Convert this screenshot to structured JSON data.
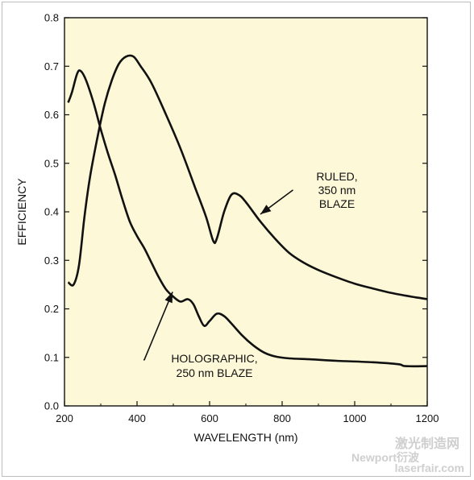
{
  "chart_data": {
    "type": "line",
    "xlabel": "WAVELENGTH (nm)",
    "ylabel": "EFFICIENCY",
    "xlim": [
      200,
      1200
    ],
    "ylim": [
      0.0,
      0.8
    ],
    "x_ticks": [
      "200",
      "400",
      "600",
      "800",
      "1000",
      "1200"
    ],
    "y_ticks": [
      "0.0",
      "0.1",
      "0.2",
      "0.3",
      "0.4",
      "0.5",
      "0.6",
      "0.7",
      "0.8"
    ],
    "grid": false,
    "background_color": "#fdf8d7",
    "line_color": "#111111",
    "series": [
      {
        "id": "ruled",
        "points": [
          [
            210,
            0.255
          ],
          [
            225,
            0.25
          ],
          [
            240,
            0.29
          ],
          [
            255,
            0.39
          ],
          [
            270,
            0.47
          ],
          [
            290,
            0.55
          ],
          [
            310,
            0.62
          ],
          [
            330,
            0.67
          ],
          [
            350,
            0.705
          ],
          [
            370,
            0.72
          ],
          [
            390,
            0.72
          ],
          [
            410,
            0.7
          ],
          [
            440,
            0.665
          ],
          [
            480,
            0.6
          ],
          [
            520,
            0.53
          ],
          [
            560,
            0.45
          ],
          [
            590,
            0.39
          ],
          [
            610,
            0.34
          ],
          [
            620,
            0.345
          ],
          [
            640,
            0.4
          ],
          [
            660,
            0.435
          ],
          [
            680,
            0.435
          ],
          [
            700,
            0.42
          ],
          [
            740,
            0.38
          ],
          [
            780,
            0.345
          ],
          [
            820,
            0.315
          ],
          [
            860,
            0.295
          ],
          [
            900,
            0.28
          ],
          [
            950,
            0.265
          ],
          [
            1000,
            0.252
          ],
          [
            1050,
            0.242
          ],
          [
            1100,
            0.233
          ],
          [
            1150,
            0.226
          ],
          [
            1200,
            0.22
          ]
        ]
      },
      {
        "id": "holographic",
        "points": [
          [
            210,
            0.625
          ],
          [
            220,
            0.645
          ],
          [
            235,
            0.685
          ],
          [
            245,
            0.69
          ],
          [
            260,
            0.67
          ],
          [
            280,
            0.625
          ],
          [
            300,
            0.57
          ],
          [
            320,
            0.52
          ],
          [
            340,
            0.475
          ],
          [
            360,
            0.425
          ],
          [
            380,
            0.38
          ],
          [
            400,
            0.35
          ],
          [
            420,
            0.325
          ],
          [
            440,
            0.295
          ],
          [
            460,
            0.265
          ],
          [
            480,
            0.24
          ],
          [
            500,
            0.225
          ],
          [
            520,
            0.215
          ],
          [
            540,
            0.22
          ],
          [
            555,
            0.21
          ],
          [
            570,
            0.185
          ],
          [
            585,
            0.165
          ],
          [
            600,
            0.175
          ],
          [
            620,
            0.19
          ],
          [
            640,
            0.185
          ],
          [
            660,
            0.17
          ],
          [
            690,
            0.145
          ],
          [
            720,
            0.125
          ],
          [
            750,
            0.11
          ],
          [
            780,
            0.102
          ],
          [
            820,
            0.098
          ],
          [
            880,
            0.096
          ],
          [
            950,
            0.093
          ],
          [
            1050,
            0.09
          ],
          [
            1120,
            0.086
          ],
          [
            1140,
            0.082
          ],
          [
            1200,
            0.082
          ]
        ]
      }
    ],
    "annotations": [
      {
        "id": "ruled",
        "lines": [
          "RULED,",
          "350 nm",
          "BLAZE"
        ],
        "arrow_from": [
          830,
          0.445
        ],
        "arrow_to": [
          740,
          0.395
        ]
      },
      {
        "id": "holographic",
        "lines": [
          "HOLOGRAPHIC,",
          "250 nm BLAZE"
        ],
        "arrow_from": [
          420,
          0.095
        ],
        "arrow_to": [
          498,
          0.235
        ]
      }
    ]
  },
  "watermark": {
    "line1": "激光制造网",
    "line2": "laserfair.com",
    "overlay": "Newport衍波"
  }
}
